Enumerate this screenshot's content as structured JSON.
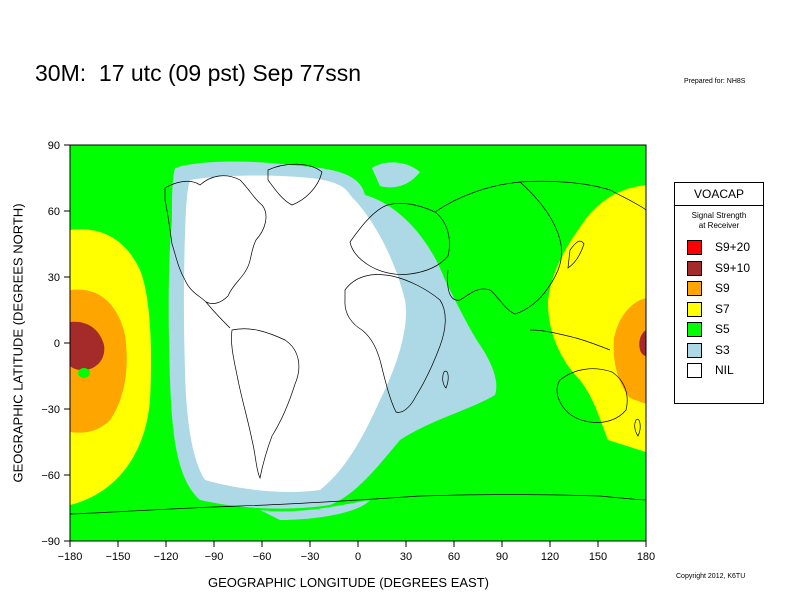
{
  "title": "30M:  17 utc (09 pst) Sep 77ssn",
  "prepared_for": "Prepared for: NH8S",
  "copyright": "Copyright 2012, K6TU",
  "axes": {
    "ylabel": "GEOGRAPHIC LATITUDE (DEGREES NORTH)",
    "xlabel": "GEOGRAPHIC LONGITUDE (DEGREES EAST)",
    "x_ticks": [
      "−180",
      "−150",
      "−120",
      "−90",
      "−60",
      "−30",
      "0",
      "30",
      "60",
      "90",
      "120",
      "150",
      "180"
    ],
    "y_ticks": [
      "90",
      "60",
      "30",
      "0",
      "−30",
      "−60",
      "−90"
    ],
    "x_range": [
      -180,
      180
    ],
    "y_range": [
      -90,
      90
    ]
  },
  "legend": {
    "title": "VOACAP",
    "subtitle_line1": "Signal Strength",
    "subtitle_line2": "at Receiver",
    "items": [
      {
        "label": "S9+20",
        "color": "#ff0000"
      },
      {
        "label": "S9+10",
        "color": "#a52a2a"
      },
      {
        "label": "S9",
        "color": "#ffa500"
      },
      {
        "label": "S7",
        "color": "#ffff00"
      },
      {
        "label": "S5",
        "color": "#00ff00"
      },
      {
        "label": "S3",
        "color": "#add8e6"
      },
      {
        "label": "NIL",
        "color": "#ffffff"
      }
    ]
  },
  "colors": {
    "s5": "#00ff00",
    "s3": "#add8e6",
    "nil": "#ffffff",
    "s7": "#ffff00",
    "s9": "#ffa500",
    "s9p10": "#a52a2a",
    "coast": "#000000"
  }
}
